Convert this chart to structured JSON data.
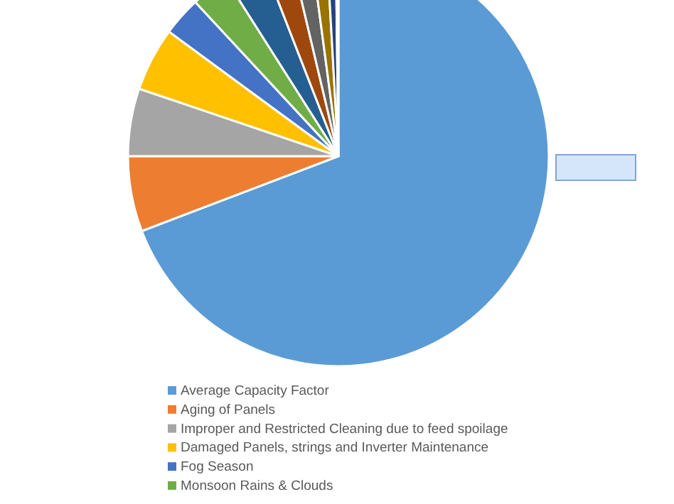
{
  "chart_data": {
    "type": "pie",
    "categories": [
      "Average Capacity Factor",
      "Aging of Panels",
      "Improper and Restricted Cleaning due to feed spoilage",
      "Damaged Panels, strings and Inverter Maintenance",
      "Fog Season",
      "Monsoon Rains & Clouds",
      null,
      null,
      null,
      null,
      null,
      null
    ],
    "values": [
      69.2,
      5.8,
      5.2,
      4.9,
      3.0,
      2.9,
      3.1,
      2.2,
      1.6,
      1.2,
      0.7,
      0.2
    ],
    "colors": [
      "#5b9bd5",
      "#ed7d31",
      "#a5a5a5",
      "#ffc000",
      "#4472c4",
      "#70ad47",
      "#255e91",
      "#9e480e",
      "#636363",
      "#997300",
      "#264478",
      "#43682b"
    ],
    "legend": "bottom"
  }
}
